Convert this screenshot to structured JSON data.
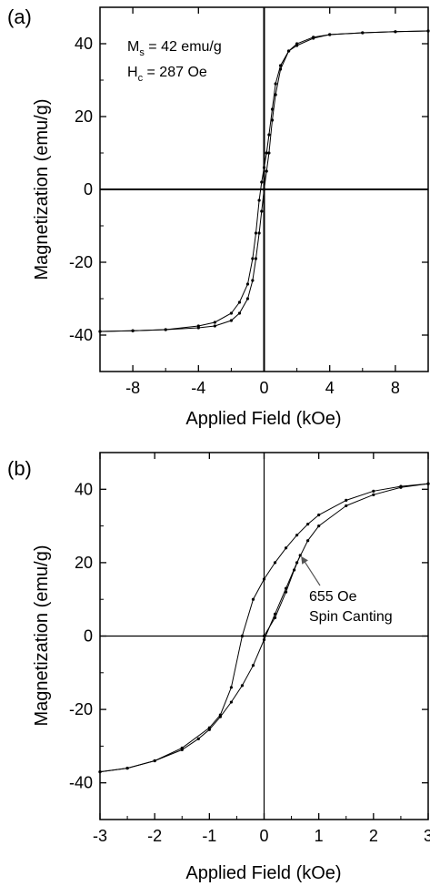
{
  "chart_data": [
    {
      "type": "line",
      "panel_label": "(a)",
      "xlabel": "Applied Field (kOe)",
      "ylabel": "Magnetization (emu/g)",
      "xlim": [
        -10,
        10
      ],
      "ylim": [
        -50,
        50
      ],
      "xticks": [
        -8,
        -4,
        0,
        4,
        8
      ],
      "yticks": [
        -40,
        -20,
        0,
        20,
        40
      ],
      "xtick_labels": [
        "-8",
        "-4",
        "0",
        "4",
        "8"
      ],
      "ytick_labels": [
        "-40",
        "-20",
        "0",
        "20",
        "40"
      ],
      "annotations": [
        {
          "main": "M",
          "sub": "s",
          "rest": " = 42 emu/g"
        },
        {
          "main": "H",
          "sub": "c",
          "rest": " = 287 Oe"
        }
      ],
      "series": [
        {
          "values_x": [
            -10,
            -8,
            -6,
            -4,
            -3,
            -2,
            -1.5,
            -1,
            -0.7,
            -0.5,
            -0.3,
            -0.15,
            0,
            0.15,
            0.3,
            0.5,
            0.7,
            1,
            1.5,
            2,
            3,
            4,
            6,
            8,
            10
          ],
          "values_y": [
            -39,
            -38.8,
            -38.5,
            -37.5,
            -36.5,
            -34,
            -31,
            -26,
            -19,
            -12,
            -3,
            2,
            6,
            10,
            15,
            22,
            29,
            34,
            38,
            39.5,
            41.5,
            42.5,
            43,
            43.3,
            43.5
          ]
        },
        {
          "values_x": [
            10,
            8,
            6,
            4,
            3,
            2,
            1.5,
            1,
            0.7,
            0.5,
            0.3,
            0.15,
            0,
            -0.15,
            -0.3,
            -0.5,
            -0.7,
            -1,
            -1.5,
            -2,
            -3,
            -4,
            -6,
            -8,
            -10
          ],
          "values_y": [
            43.5,
            43.3,
            43,
            42.5,
            41.8,
            40,
            38,
            33,
            26,
            19,
            10,
            5,
            0,
            -6,
            -12,
            -19,
            -25,
            -30,
            -34,
            -36,
            -37.5,
            -38,
            -38.5,
            -38.8,
            -39
          ]
        }
      ]
    },
    {
      "type": "line",
      "panel_label": "(b)",
      "xlabel": "Applied Field (kOe)",
      "ylabel": "Magnetization (emu/g)",
      "xlim": [
        -3,
        3
      ],
      "ylim": [
        -50,
        50
      ],
      "xticks": [
        -3,
        -2,
        -1,
        0,
        1,
        2,
        3
      ],
      "yticks": [
        -40,
        -20,
        0,
        20,
        40
      ],
      "xtick_labels": [
        "-3",
        "-2",
        "-1",
        "0",
        "1",
        "2",
        "3"
      ],
      "ytick_labels": [
        "-40",
        "-20",
        "0",
        "20",
        "40"
      ],
      "annotations": [
        {
          "text": "655 Oe"
        },
        {
          "text": "Spin Canting"
        }
      ],
      "arrow_target": {
        "x": 0.66,
        "y": 22
      },
      "series": [
        {
          "values_x": [
            -3,
            -2.5,
            -2,
            -1.5,
            -1.2,
            -1,
            -0.8,
            -0.6,
            -0.4,
            -0.2,
            0,
            0.2,
            0.4,
            0.6,
            0.8,
            1,
            1.5,
            2,
            2.5,
            3
          ],
          "values_y": [
            -37,
            -36,
            -34,
            -31,
            -28,
            -25.5,
            -22,
            -18,
            -13.5,
            -8,
            -1,
            6,
            13,
            20,
            26,
            30,
            35.5,
            38.5,
            40.5,
            41.5
          ]
        },
        {
          "values_x": [
            3,
            2.5,
            2,
            1.5,
            1,
            0.8,
            0.6,
            0.4,
            0.2,
            0,
            -0.2,
            -0.4,
            -0.6,
            -0.8,
            -1,
            -1.5,
            -2,
            -2.5,
            -3
          ],
          "values_y": [
            41.5,
            40.8,
            39.5,
            37,
            33,
            30.5,
            27.5,
            24,
            20,
            15.5,
            10,
            0,
            -14,
            -21.5,
            -25,
            -30.5,
            -34,
            -36,
            -37
          ]
        },
        {
          "values_x": [
            0,
            0.2,
            0.4,
            0.55,
            0.66
          ],
          "values_y": [
            0,
            5,
            12,
            18,
            22
          ]
        }
      ]
    }
  ]
}
